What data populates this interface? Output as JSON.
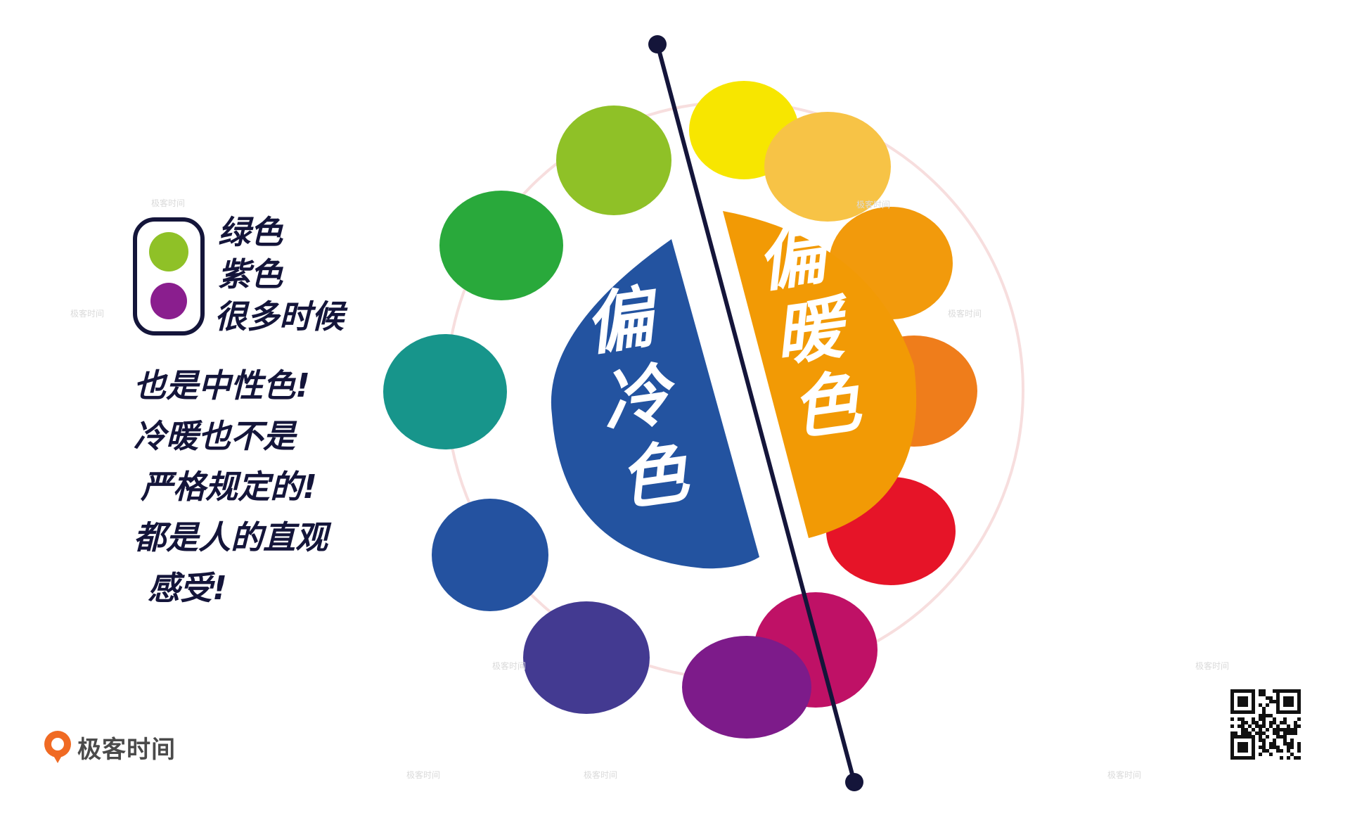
{
  "diagram": {
    "cool_label": "偏冷色",
    "warm_label": "偏暖色",
    "colors": {
      "cool_half": "#2353a0",
      "warm_half": "#f29a05",
      "divider": "#14153a",
      "ring": "#f7dede"
    },
    "wheel": [
      {
        "name": "yellow",
        "color": "#f7e600"
      },
      {
        "name": "yellow-orange",
        "color": "#f7c346"
      },
      {
        "name": "orange-light",
        "color": "#f29a0c"
      },
      {
        "name": "orange",
        "color": "#ef7d1b"
      },
      {
        "name": "red",
        "color": "#e61428"
      },
      {
        "name": "magenta",
        "color": "#bf1166"
      },
      {
        "name": "purple",
        "color": "#7d1b8a"
      },
      {
        "name": "blue-violet",
        "color": "#433a91"
      },
      {
        "name": "blue",
        "color": "#2452a0"
      },
      {
        "name": "teal",
        "color": "#17958b"
      },
      {
        "name": "green",
        "color": "#29a93b"
      },
      {
        "name": "yellow-green",
        "color": "#8fc127"
      }
    ]
  },
  "legend": {
    "swatches": [
      {
        "name": "green",
        "color": "#8fc127"
      },
      {
        "name": "purple",
        "color": "#8a1e8e"
      }
    ],
    "lines": [
      "绿色",
      "紫色",
      "很多时候"
    ]
  },
  "note": {
    "lines": [
      "也是中性色!",
      "冷暖也不是",
      "严格规定的!",
      "都是人的直观",
      "感受!"
    ]
  },
  "brand": {
    "name": "极客时间",
    "accent": "#f06a23"
  },
  "watermark": "极客时间"
}
